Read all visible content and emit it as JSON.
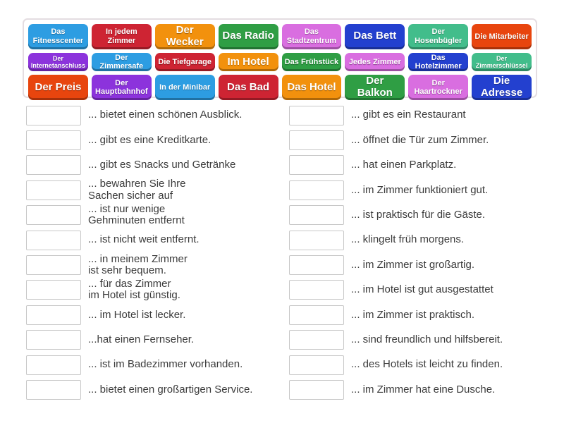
{
  "colors": {
    "blue": "#2d9de2",
    "red": "#ce2433",
    "orange": "#f2910d",
    "green": "#2f9e44",
    "orchid": "#d96ee0",
    "navy": "#2340cf",
    "seagreen": "#42bd8b",
    "orangered": "#e8450e",
    "purple": "#8c33dc",
    "panel_border": "#e4dde1",
    "sentence_text": "#3b3b3b"
  },
  "word_bank": {
    "rows": [
      [
        {
          "label": "Das Fitnesscenter",
          "color": "blue",
          "size": "md"
        },
        {
          "label": "In jedem Zimmer",
          "color": "red",
          "size": "md"
        },
        {
          "label": "Der Wecker",
          "color": "orange",
          "size": "lg"
        },
        {
          "label": "Das Radio",
          "color": "green",
          "size": "lg"
        },
        {
          "label": "Das Stadtzentrum",
          "color": "orchid",
          "size": "md"
        },
        {
          "label": "Das Bett",
          "color": "navy",
          "size": "lg"
        },
        {
          "label": "Der Hosenbügler",
          "color": "seagreen",
          "size": "md"
        },
        {
          "label": "Die Mitarbeiter",
          "color": "orangered",
          "size": "md"
        }
      ],
      [
        {
          "label": "Der Internetanschluss",
          "color": "purple",
          "size": "sm"
        },
        {
          "label": "Der Zimmersafe",
          "color": "blue",
          "size": "md"
        },
        {
          "label": "Die Tiefgarage",
          "color": "red",
          "size": "md"
        },
        {
          "label": "Im Hotel",
          "color": "orange",
          "size": "lg"
        },
        {
          "label": "Das Frühstück",
          "color": "green",
          "size": "md"
        },
        {
          "label": "Jedes Zimmer",
          "color": "orchid",
          "size": "md"
        },
        {
          "label": "Das Hotelzimmer",
          "color": "navy",
          "size": "md"
        },
        {
          "label": "Der Zimmerschlüssel",
          "color": "seagreen",
          "size": "sm"
        }
      ],
      [
        {
          "label": "Der Preis",
          "color": "orangered",
          "size": "lg"
        },
        {
          "label": "Der Hauptbahnhof",
          "color": "purple",
          "size": "md"
        },
        {
          "label": "In der Minibar",
          "color": "blue",
          "size": "md"
        },
        {
          "label": "Das Bad",
          "color": "red",
          "size": "lg"
        },
        {
          "label": "Das Hotel",
          "color": "orange",
          "size": "lg"
        },
        {
          "label": "Der Balkon",
          "color": "green",
          "size": "lg"
        },
        {
          "label": "Der Haartrockner",
          "color": "orchid",
          "size": "md"
        },
        {
          "label": "Die Adresse",
          "color": "navy",
          "size": "lg"
        }
      ]
    ]
  },
  "left_column": [
    "... bietet einen schönen Ausblick.",
    "... gibt es eine Kreditkarte.",
    "... gibt es Snacks und Getränke",
    "... bewahren Sie Ihre\nSachen sicher auf",
    "... ist nur wenige\nGehminuten entfernt",
    "... ist nicht weit entfernt.",
    "... in meinem Zimmer\nist sehr bequem.",
    "... für das Zimmer\nim Hotel ist günstig.",
    "... im Hotel ist lecker.",
    "...hat einen Fernseher.",
    "... ist im Badezimmer vorhanden.",
    "... bietet einen großartigen Service."
  ],
  "right_column": [
    "... gibt es ein Restaurant",
    "... öffnet die Tür zum Zimmer.",
    "... hat einen Parkplatz.",
    "... im Zimmer funktioniert gut.",
    "... ist praktisch für die Gäste.",
    "... klingelt früh morgens.",
    "... im Zimmer ist großartig.",
    "... im Hotel ist gut ausgestattet",
    "... im Zimmer ist praktisch.",
    "... sind freundlich und hilfsbereit.",
    "... des Hotels ist leicht zu finden.",
    "... im Zimmer hat eine Dusche."
  ]
}
